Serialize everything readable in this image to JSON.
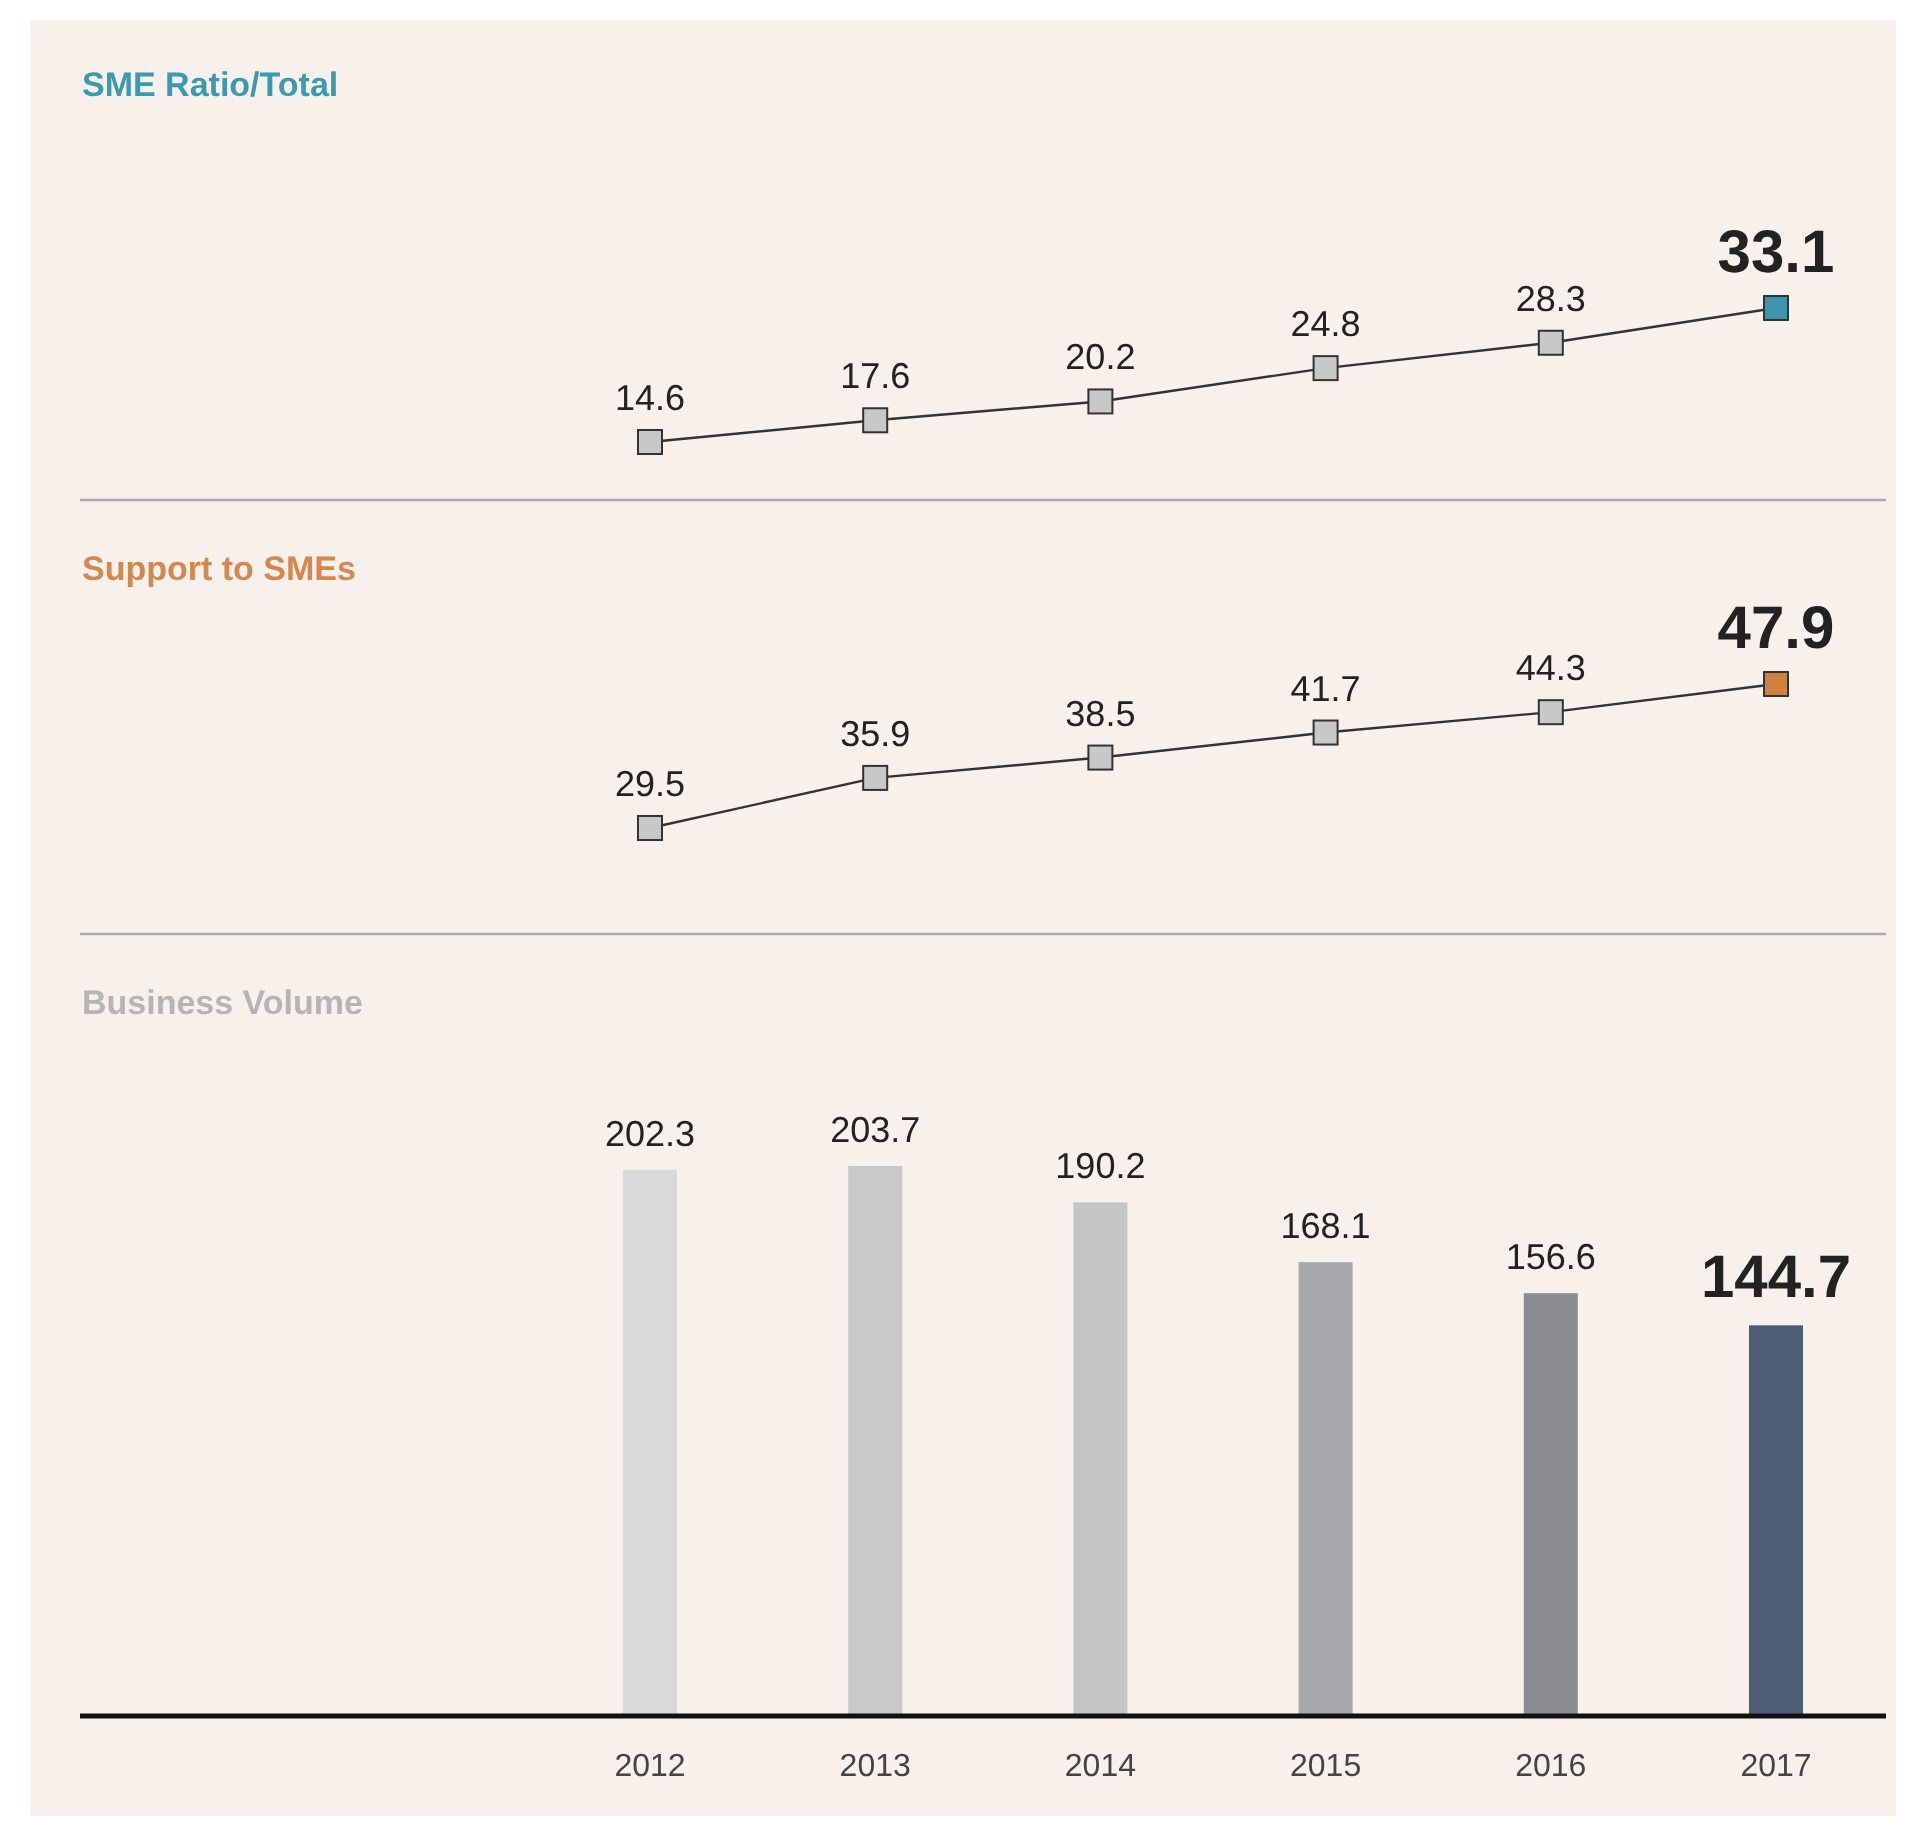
{
  "chart_data": [
    {
      "type": "line",
      "title": "SME Ratio/Total",
      "categories": [
        null,
        null,
        null,
        null,
        null,
        null
      ],
      "tick_labels": false,
      "data_labels": true,
      "marker": "square",
      "series": [
        {
          "color": "#333333",
          "colors": [
            "#c8c8c8",
            "#c8c8c8",
            "#c8c8c8",
            "#c8c8c8",
            "#c8c8c8",
            "#3a95ad"
          ],
          "values": [
            14.6,
            17.6,
            20.2,
            24.8,
            28.3,
            33.1
          ]
        }
      ]
    },
    {
      "type": "line",
      "title": "Support to SMEs",
      "categories": [
        null,
        null,
        null,
        null,
        null,
        null
      ],
      "tick_labels": false,
      "data_labels": true,
      "marker": "square",
      "series": [
        {
          "color": "#333333",
          "colors": [
            "#c8c8c8",
            "#c8c8c8",
            "#c8c8c8",
            "#c8c8c8",
            "#c8c8c8",
            "#d08040"
          ],
          "values": [
            29.5,
            35.9,
            38.5,
            41.7,
            44.3,
            47.9
          ]
        }
      ]
    },
    {
      "type": "bar",
      "title": "Business Volume",
      "categories": [
        "2012",
        "2013",
        "2014",
        "2015",
        "2016",
        "2017"
      ],
      "data_labels": true,
      "series": [
        {
          "colors": [
            "#d9d9d9",
            "#c9c9cb",
            "#c4c5c7",
            "#a8a9ad",
            "#8c8d92",
            "#4f5e74"
          ],
          "values": [
            202.3,
            203.7,
            190.2,
            168.1,
            156.6,
            144.7
          ]
        }
      ]
    }
  ]
}
